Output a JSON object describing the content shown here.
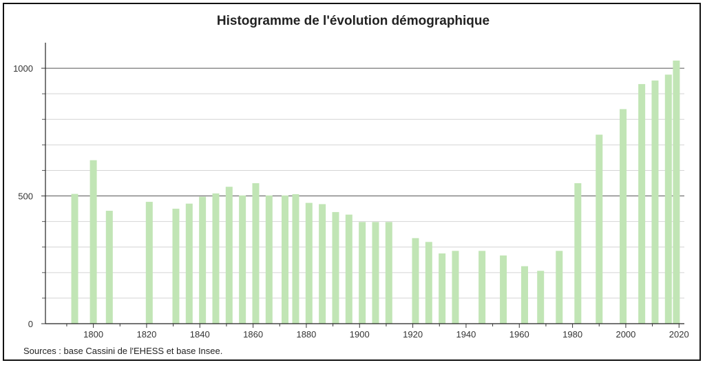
{
  "chart_data": {
    "type": "bar",
    "title": "Histogramme de l'évolution démographique",
    "source": "Sources : base Cassini de l'EHESS et base Insee.",
    "ylim": [
      0,
      1100
    ],
    "xlim": [
      1782,
      2022
    ],
    "y_ticks": [
      0,
      500,
      1000
    ],
    "y_minor_step": 100,
    "x_ticks": [
      1800,
      1820,
      1840,
      1860,
      1880,
      1900,
      1920,
      1940,
      1960,
      1980,
      2000,
      2020
    ],
    "grid": true,
    "bar_color": "#c1e5b5",
    "series": [
      {
        "x": [
          1793,
          1800,
          1806,
          1821,
          1831,
          1836,
          1841,
          1846,
          1851,
          1856,
          1861,
          1866,
          1872,
          1876,
          1881,
          1886,
          1891,
          1896,
          1901,
          1906,
          1911,
          1921,
          1926,
          1931,
          1936,
          1946,
          1954,
          1962,
          1968,
          1975,
          1982,
          1990,
          1999,
          2006,
          2011,
          2016,
          2019
        ],
        "values": [
          508,
          640,
          442,
          477,
          450,
          470,
          497,
          510,
          536,
          502,
          550,
          502,
          502,
          507,
          473,
          468,
          437,
          427,
          398,
          398,
          398,
          335,
          320,
          275,
          285,
          285,
          267,
          225,
          207,
          285,
          550,
          740,
          840,
          938,
          952,
          975,
          1030
        ]
      }
    ]
  }
}
